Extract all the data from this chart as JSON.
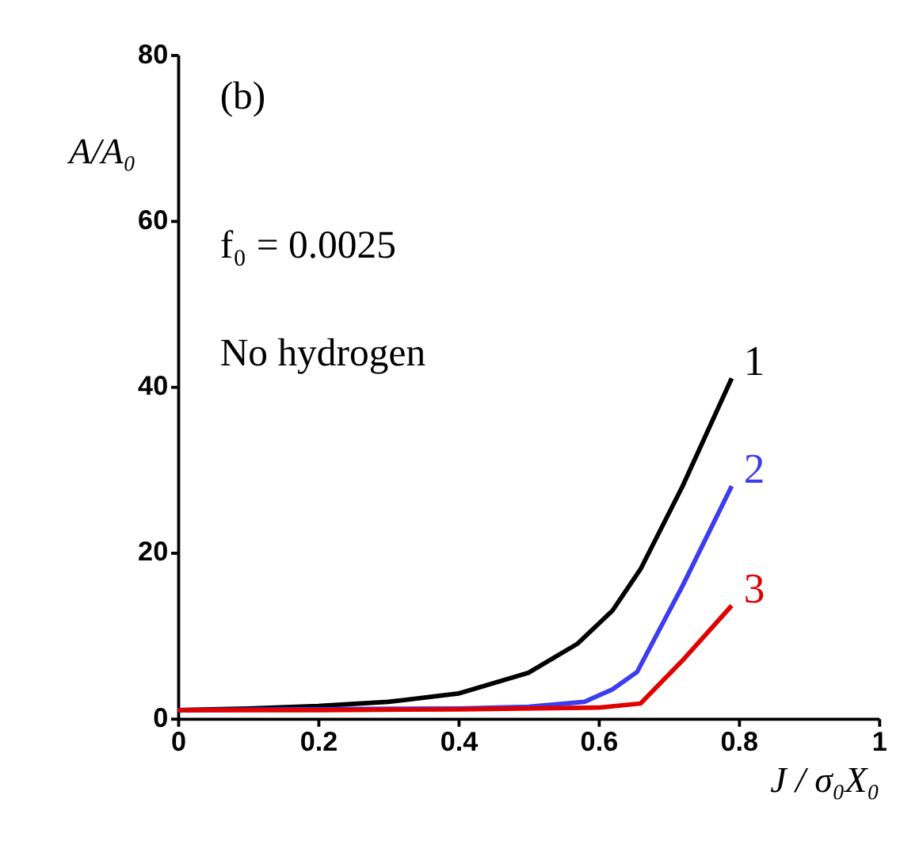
{
  "chart_data": {
    "type": "line",
    "xlabel": "J / σ₀X₀",
    "ylabel": "A/A₀",
    "annotations": [
      "(b)",
      "f₀ = 0.0025",
      "No hydrogen"
    ],
    "xlim": [
      0,
      1
    ],
    "xticks": [
      0,
      0.2,
      0.4,
      0.6,
      0.8,
      1
    ],
    "ylim": [
      0,
      80
    ],
    "yticks": [
      0,
      20,
      40,
      60,
      80
    ],
    "grid": false,
    "legend": false,
    "series": [
      {
        "name": "1",
        "color": "#000000",
        "x": [
          0,
          0.1,
          0.2,
          0.3,
          0.4,
          0.5,
          0.57,
          0.62,
          0.66,
          0.72,
          0.79
        ],
        "values": [
          1,
          1.2,
          1.5,
          2,
          3,
          5.5,
          9,
          13,
          18,
          28,
          41
        ]
      },
      {
        "name": "2",
        "color": "#3c3cf0",
        "x": [
          0,
          0.4,
          0.5,
          0.58,
          0.62,
          0.655,
          0.72,
          0.79
        ],
        "values": [
          1,
          1.2,
          1.4,
          2,
          3.5,
          5.6,
          16,
          28
        ]
      },
      {
        "name": "3",
        "color": "#e00000",
        "x": [
          0,
          0.2,
          0.4,
          0.6,
          0.66,
          0.72,
          0.79
        ],
        "values": [
          1,
          1,
          1.1,
          1.3,
          1.8,
          7,
          13.6
        ]
      }
    ]
  }
}
